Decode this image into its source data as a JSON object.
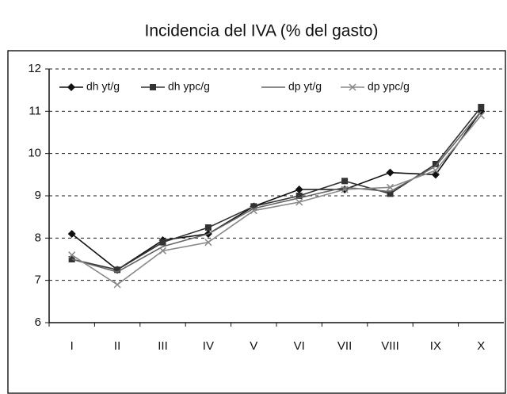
{
  "chart_data": {
    "type": "line",
    "title": "Incidencia del IVA (% del gasto)",
    "categories": [
      "I",
      "II",
      "III",
      "IV",
      "V",
      "VI",
      "VII",
      "VIII",
      "IX",
      "X"
    ],
    "series": [
      {
        "name": "dh yt/g",
        "color": "#111111",
        "marker": "diamond",
        "values": [
          8.1,
          7.25,
          7.95,
          8.1,
          8.75,
          9.15,
          9.15,
          9.55,
          9.5,
          11.0
        ]
      },
      {
        "name": "dh ypc/g",
        "color": "#333333",
        "marker": "square",
        "values": [
          7.5,
          7.25,
          7.9,
          8.25,
          8.75,
          9.0,
          9.35,
          9.05,
          9.75,
          11.1
        ]
      },
      {
        "name": "dp yt/g",
        "color": "#666666",
        "marker": "none",
        "values": [
          7.5,
          7.2,
          7.8,
          8.1,
          8.7,
          8.95,
          9.2,
          9.1,
          9.7,
          11.0
        ]
      },
      {
        "name": "dp ypc/g",
        "color": "#888888",
        "marker": "x",
        "values": [
          7.6,
          6.9,
          7.7,
          7.9,
          8.65,
          8.85,
          9.15,
          9.2,
          9.6,
          10.9
        ]
      }
    ],
    "ylim": [
      6,
      12
    ],
    "yticks": [
      6,
      7,
      8,
      9,
      10,
      11,
      12
    ],
    "grid": true
  }
}
